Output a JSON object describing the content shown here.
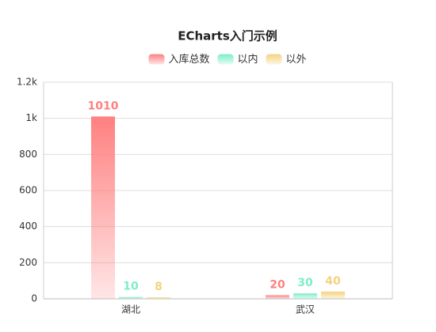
{
  "chart_data": {
    "type": "bar",
    "title": "ECharts入门示例",
    "categories": [
      "湖北",
      "武汉"
    ],
    "series": [
      {
        "name": "入库总数",
        "color": "#ff8080",
        "values": [
          1010,
          20
        ]
      },
      {
        "name": "以内",
        "color": "#7ceec8",
        "values": [
          10,
          30
        ]
      },
      {
        "name": "以外",
        "color": "#f5d27e",
        "values": [
          8,
          40
        ]
      }
    ],
    "ylim": [
      0,
      1200
    ],
    "yticks": [
      0,
      200,
      400,
      600,
      800,
      {
        "value": 1000,
        "label": "1k"
      },
      {
        "value": 1200,
        "label": "1.2k"
      }
    ],
    "grid": true,
    "legend": "top"
  }
}
